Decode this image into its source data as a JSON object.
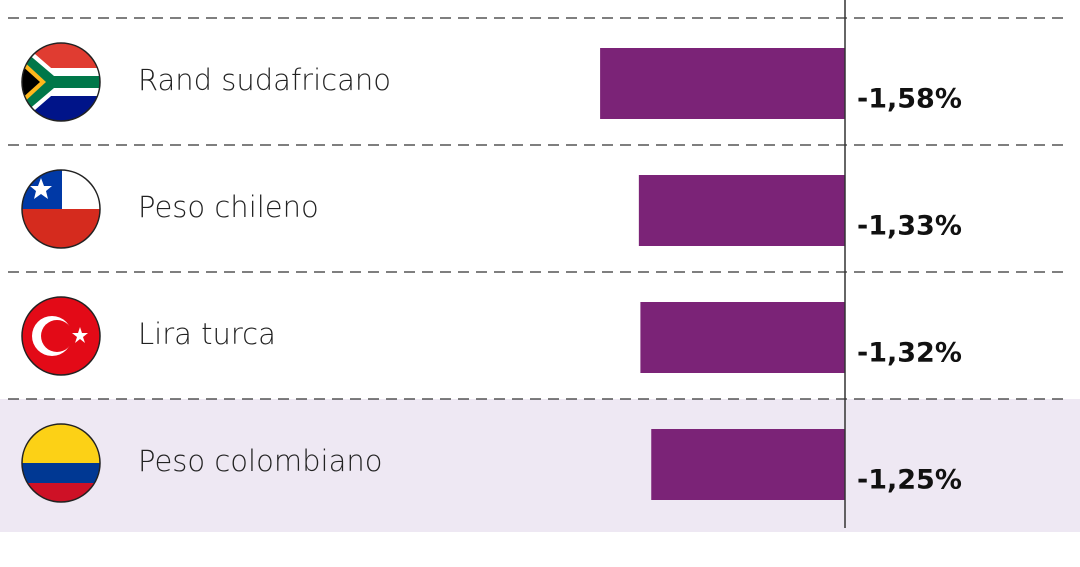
{
  "chart_data": {
    "type": "barh",
    "categories": [
      "Rand sudafricano",
      "Peso chileno",
      "Lira turca",
      "Peso colombiano"
    ],
    "values": [
      -1.58,
      -1.33,
      -1.32,
      -1.25
    ],
    "value_labels": [
      "-1,58%",
      "-1,33%",
      "-1,32%",
      "-1,25%"
    ],
    "color": "#7b2377",
    "xlim": [
      -2,
      1.5
    ]
  }
}
